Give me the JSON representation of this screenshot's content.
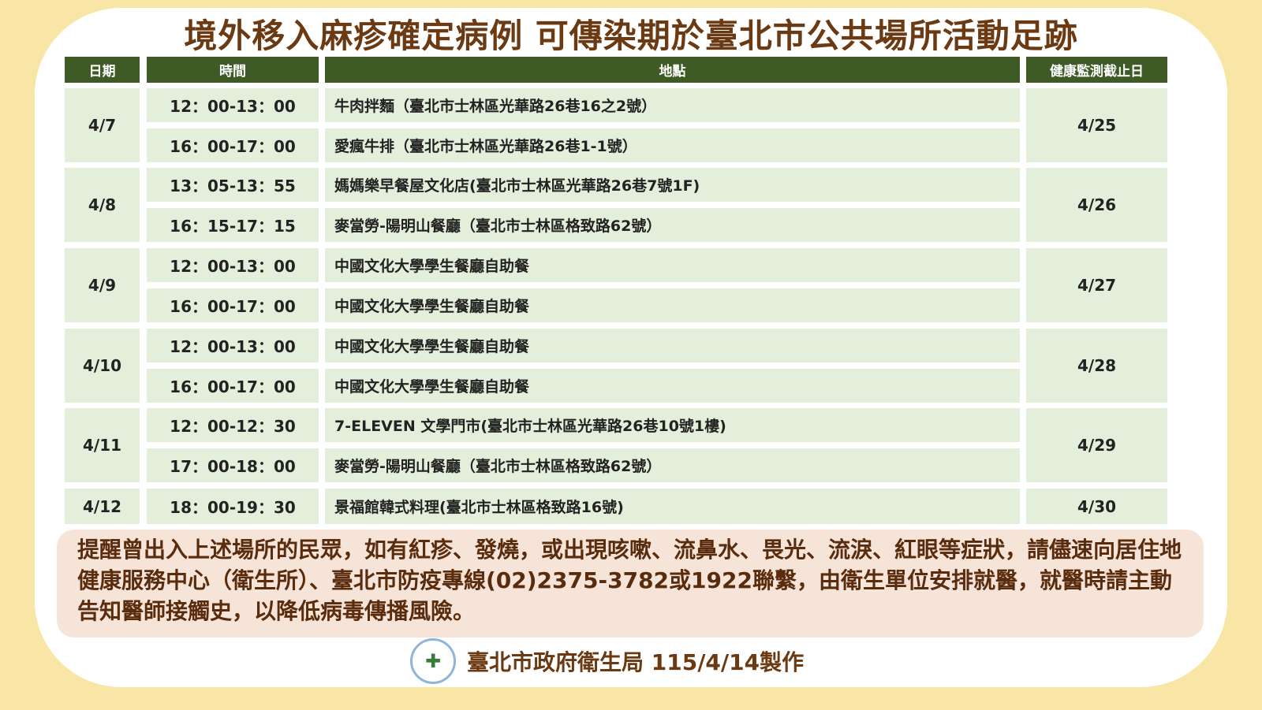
{
  "title": "境外移入麻疹確定病例 可傳染期於臺北市公共場所活動足跡",
  "headers": {
    "date": "日期",
    "time": "時間",
    "place": "地點",
    "deadline": "健康監測截止日"
  },
  "groups": [
    {
      "date": "4/7",
      "deadline": "4/25",
      "rows": [
        {
          "time": "12：00-13：00",
          "place": "牛肉拌麵（臺北市士林區光華路26巷16之2號）"
        },
        {
          "time": "16：00-17：00",
          "place": "愛瘋牛排（臺北市士林區光華路26巷1-1號）"
        }
      ]
    },
    {
      "date": "4/8",
      "deadline": "4/26",
      "rows": [
        {
          "time": "13：05-13：55",
          "place": "媽媽樂早餐屋文化店(臺北市士林區光華路26巷7號1F)"
        },
        {
          "time": "16：15-17：15",
          "place": "麥當勞-陽明山餐廳（臺北市士林區格致路62號）"
        }
      ]
    },
    {
      "date": "4/9",
      "deadline": "4/27",
      "rows": [
        {
          "time": "12：00-13：00",
          "place": "中國文化大學學生餐廳自助餐"
        },
        {
          "time": "16：00-17：00",
          "place": "中國文化大學學生餐廳自助餐"
        }
      ]
    },
    {
      "date": "4/10",
      "deadline": "4/28",
      "rows": [
        {
          "time": "12：00-13：00",
          "place": "中國文化大學學生餐廳自助餐"
        },
        {
          "time": "16：00-17：00",
          "place": "中國文化大學學生餐廳自助餐"
        }
      ]
    },
    {
      "date": "4/11",
      "deadline": "4/29",
      "rows": [
        {
          "time": "12：00-12：30",
          "place": "7-ELEVEN 文學門市(臺北市士林區光華路26巷10號1樓)"
        },
        {
          "time": "17：00-18：00",
          "place": "麥當勞-陽明山餐廳（臺北市士林區格致路62號）"
        }
      ]
    },
    {
      "date": "4/12",
      "deadline": "4/30",
      "rows": [
        {
          "time": "18：00-19：30",
          "place": "景福館韓式料理(臺北市士林區格致路16號)"
        }
      ]
    }
  ],
  "notice": "提醒曾出入上述場所的民眾，如有紅疹、發燒，或出現咳嗽、流鼻水、畏光、流淚、紅眼等症狀，請儘速向居住地健康服務中心（衛生所）、臺北市防疫專線(02)2375-3782或1922聯繫，由衛生單位安排就醫，就醫時請主動告知醫師接觸史，以降低病毒傳播風險。",
  "footer": {
    "text": "臺北市政府衛生局 115/4/14製作",
    "logo_icon": "health-department-seal"
  },
  "colors": {
    "header": "#3e5a25",
    "cell": "#e3eedb",
    "title": "#6b3a12",
    "notice_bg": "#f7e4d8",
    "background": "#f9e6a6"
  }
}
